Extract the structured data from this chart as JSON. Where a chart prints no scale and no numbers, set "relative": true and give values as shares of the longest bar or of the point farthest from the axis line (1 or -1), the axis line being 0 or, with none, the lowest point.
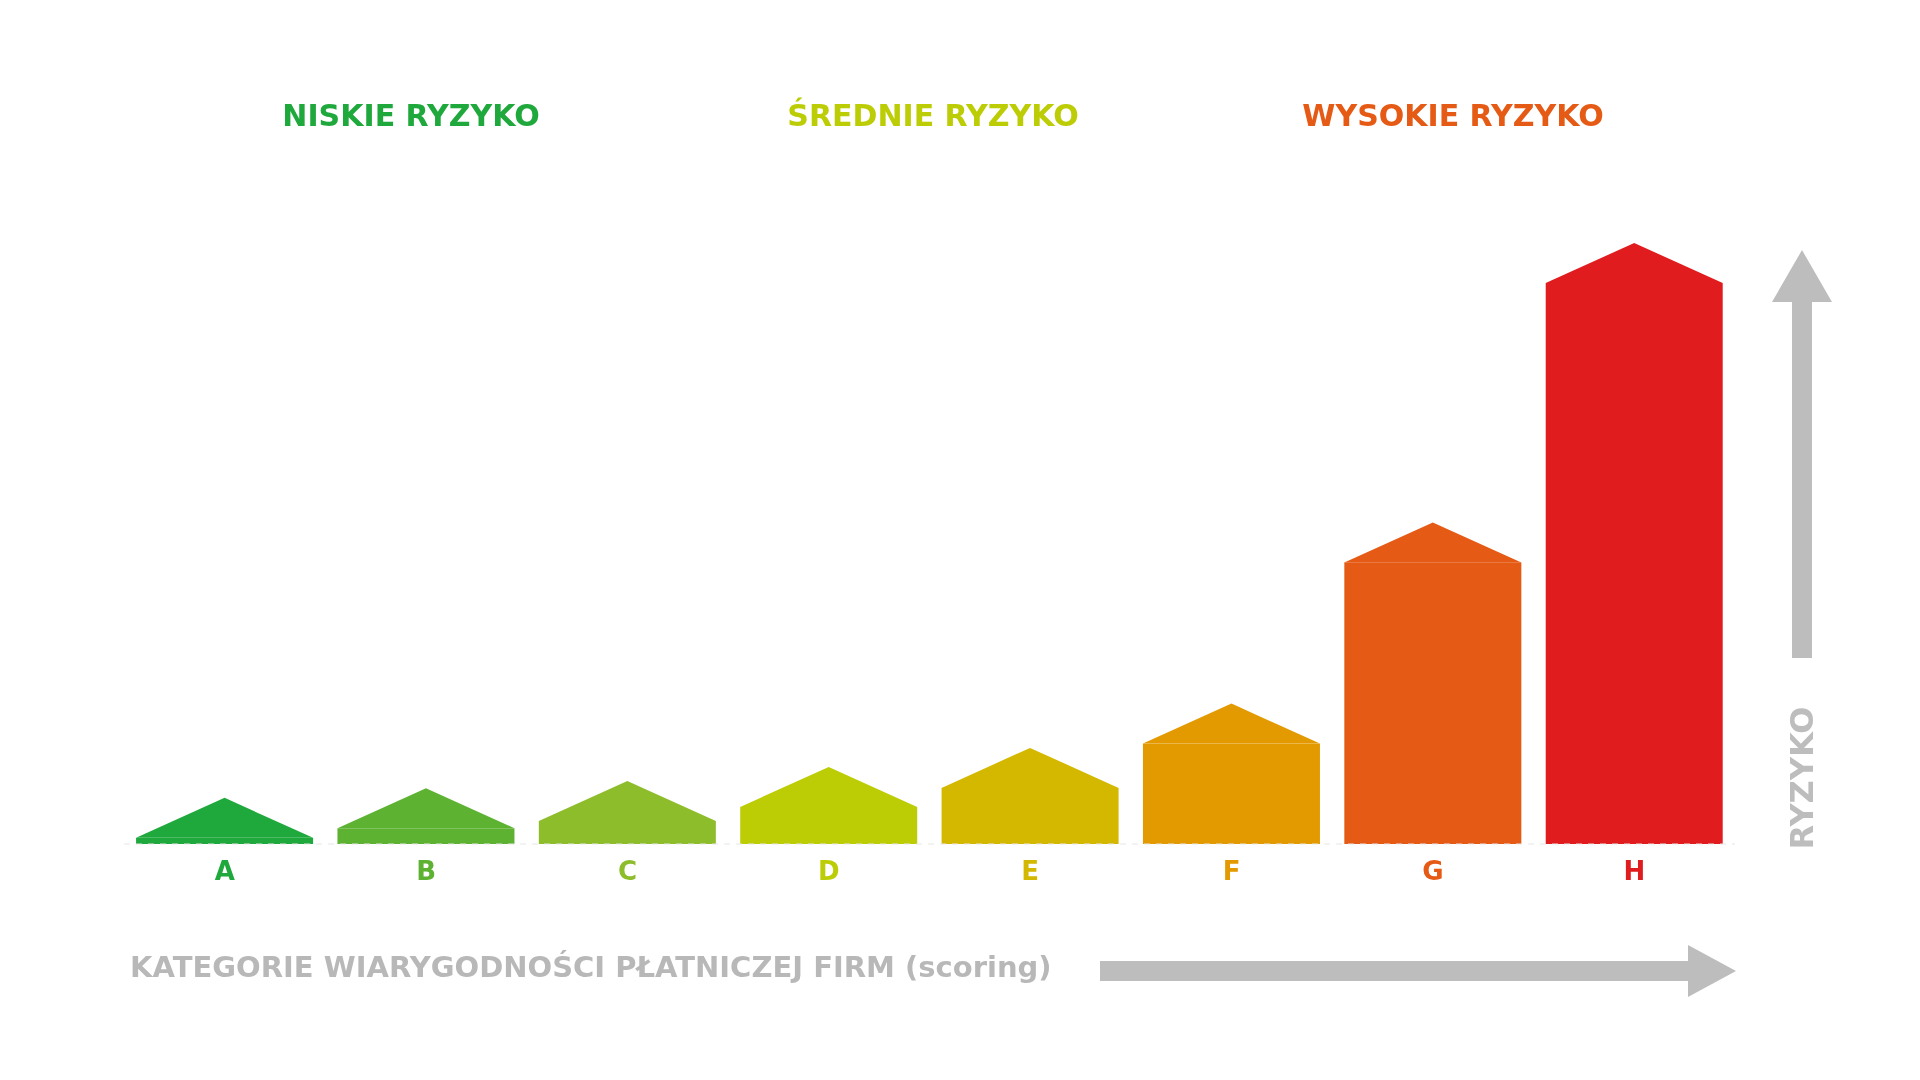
{
  "chart_data": {
    "type": "bar",
    "relative": true,
    "categories": [
      "A",
      "B",
      "C",
      "D",
      "E",
      "F",
      "G",
      "H"
    ],
    "values": [
      0.011,
      0.028,
      0.041,
      0.066,
      0.1,
      0.179,
      0.502,
      1
    ],
    "colors": [
      "#1fa83c",
      "#5db232",
      "#8dbd2a",
      "#bccd06",
      "#d4b800",
      "#e39a00",
      "#e55a14",
      "#e01c1e"
    ],
    "xlabel": "KATEGORIE WIARYGODNOŚCI PŁATNICZEJ FIRM (scoring)",
    "ylabel": "RYZYKO",
    "annotations": [
      "NISKIE RYZYKO",
      "ŚREDNIE RYZYKO",
      "WYSOKIE RYZYKO"
    ]
  }
}
